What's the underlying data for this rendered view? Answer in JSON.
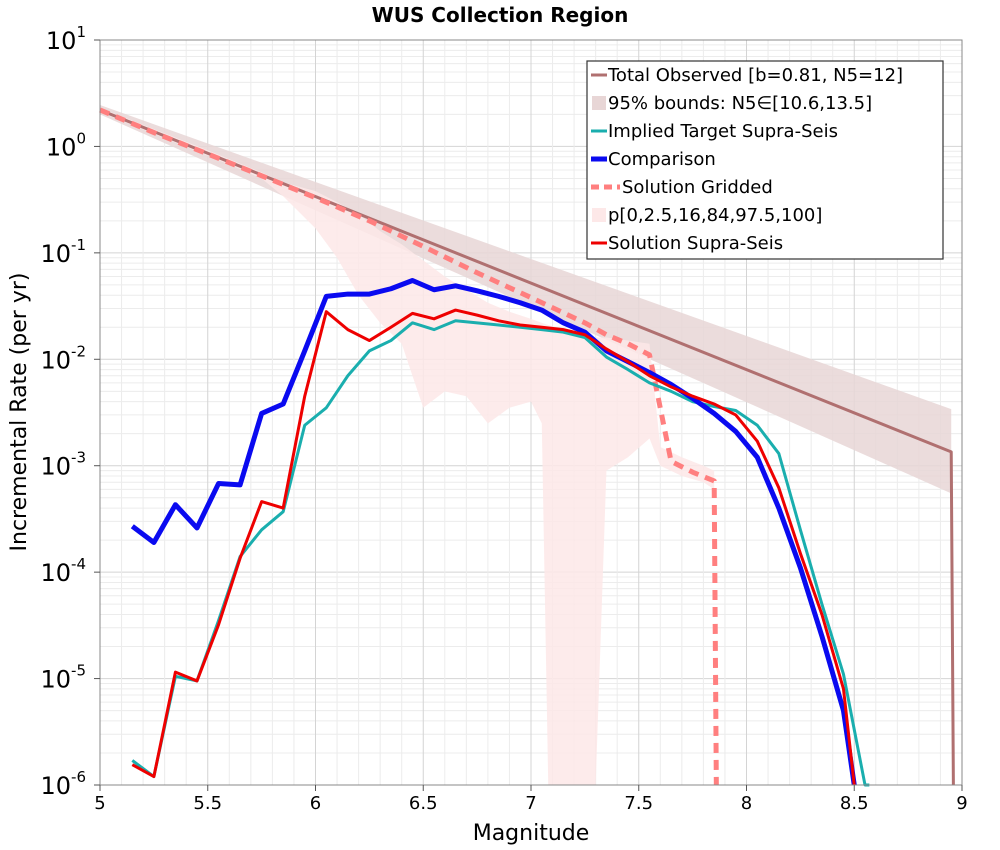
{
  "chart_data": {
    "type": "line",
    "title": "WUS Collection Region",
    "xlabel": "Magnitude",
    "ylabel": "Incremental Rate (per yr)",
    "xlim": [
      5,
      9
    ],
    "ylim": [
      1e-06,
      10
    ],
    "yscale": "log",
    "grid": true,
    "legend_position": "top-right",
    "x_ticks": [
      "5",
      "5.5",
      "6",
      "6.5",
      "7",
      "7.5",
      "8",
      "8.5",
      "9"
    ],
    "y_ticks": [
      {
        "base": "10",
        "exp": "-6"
      },
      {
        "base": "10",
        "exp": "-5"
      },
      {
        "base": "10",
        "exp": "-4"
      },
      {
        "base": "10",
        "exp": "-3"
      },
      {
        "base": "10",
        "exp": "-2"
      },
      {
        "base": "10",
        "exp": "-1"
      },
      {
        "base": "10",
        "exp": "0"
      },
      {
        "base": "10",
        "exp": "1"
      }
    ],
    "legend": [
      {
        "label": "Total Observed [b=0.81, N5=12]",
        "color": "#b07070",
        "style": "line"
      },
      {
        "label": "95% bounds: N5∈[10.6,13.5]",
        "color": "#e8d6d6",
        "style": "band"
      },
      {
        "label": "Implied Target Supra-Seis",
        "color": "#1aaeae",
        "style": "line"
      },
      {
        "label": "Comparison",
        "color": "#0a0af0",
        "style": "thick"
      },
      {
        "label": "Solution Gridded",
        "color": "#ff7f7f",
        "style": "dashed"
      },
      {
        "label": "p[0,2.5,16,84,97.5,100]",
        "color": "#fde8e8",
        "style": "band"
      },
      {
        "label": "Solution Supra-Seis",
        "color": "#ee0000",
        "style": "line"
      }
    ],
    "series": [
      {
        "name": "Total Observed [b=0.81, N5=12]",
        "color": "#b07070",
        "x": [
          5.0,
          8.95,
          8.96
        ],
        "y": [
          2.2,
          0.00135,
          1e-06
        ]
      },
      {
        "name": "Implied Target Supra-Seis",
        "color": "#1aaeae",
        "x": [
          5.15,
          5.25,
          5.35,
          5.45,
          5.55,
          5.65,
          5.75,
          5.85,
          5.95,
          6.05,
          6.15,
          6.25,
          6.35,
          6.45,
          6.55,
          6.65,
          6.75,
          6.85,
          6.95,
          7.05,
          7.15,
          7.25,
          7.35,
          7.45,
          7.55,
          7.65,
          7.75,
          7.85,
          7.95,
          8.05,
          8.15,
          8.25,
          8.35,
          8.45,
          8.55,
          8.57
        ],
        "y": [
          1.7e-06,
          1.2e-06,
          1.05e-05,
          9.5e-06,
          3.5e-05,
          0.00014,
          0.00025,
          0.00037,
          0.0024,
          0.0035,
          0.007,
          0.012,
          0.015,
          0.022,
          0.019,
          0.023,
          0.022,
          0.021,
          0.02,
          0.019,
          0.018,
          0.016,
          0.0105,
          0.008,
          0.006,
          0.005,
          0.004,
          0.0036,
          0.0033,
          0.0024,
          0.0013,
          0.00025,
          5e-05,
          1.1e-05,
          6.5e-07,
          1e-06
        ]
      },
      {
        "name": "Comparison",
        "color": "#0a0af0",
        "x": [
          5.15,
          5.25,
          5.35,
          5.45,
          5.55,
          5.65,
          5.75,
          5.85,
          5.95,
          6.05,
          6.15,
          6.25,
          6.35,
          6.45,
          6.55,
          6.65,
          6.75,
          6.85,
          6.95,
          7.05,
          7.15,
          7.25,
          7.35,
          7.45,
          7.55,
          7.65,
          7.75,
          7.85,
          7.95,
          8.05,
          8.15,
          8.25,
          8.35,
          8.45,
          8.5
        ],
        "y": [
          0.00027,
          0.00019,
          0.00043,
          0.00026,
          0.00068,
          0.00066,
          0.0031,
          0.0038,
          0.012,
          0.039,
          0.041,
          0.041,
          0.046,
          0.055,
          0.045,
          0.049,
          0.044,
          0.039,
          0.034,
          0.029,
          0.022,
          0.018,
          0.012,
          0.0095,
          0.0075,
          0.0058,
          0.0043,
          0.0031,
          0.0021,
          0.0012,
          0.0004,
          0.00011,
          2.5e-05,
          5e-06,
          1e-06
        ]
      },
      {
        "name": "Solution Gridded",
        "color": "#ff7f7f",
        "x": [
          5.0,
          5.25,
          5.5,
          5.75,
          6.0,
          6.25,
          6.5,
          6.75,
          7.0,
          7.25,
          7.35,
          7.45,
          7.55,
          7.65,
          7.75,
          7.85,
          7.86
        ],
        "y": [
          2.2,
          1.35,
          0.85,
          0.53,
          0.33,
          0.2,
          0.115,
          0.065,
          0.038,
          0.022,
          0.017,
          0.014,
          0.011,
          0.0011,
          0.00087,
          0.00072,
          1e-06
        ]
      },
      {
        "name": "Solution Supra-Seis",
        "color": "#ee0000",
        "x": [
          5.15,
          5.25,
          5.35,
          5.45,
          5.55,
          5.65,
          5.75,
          5.85,
          5.95,
          6.05,
          6.15,
          6.25,
          6.35,
          6.45,
          6.55,
          6.65,
          6.75,
          6.85,
          6.95,
          7.05,
          7.15,
          7.25,
          7.35,
          7.45,
          7.55,
          7.65,
          7.75,
          7.85,
          7.95,
          8.05,
          8.15,
          8.25,
          8.35,
          8.45,
          8.5
        ],
        "y": [
          1.55e-06,
          1.2e-06,
          1.15e-05,
          9.5e-06,
          3.2e-05,
          0.000135,
          0.00046,
          0.0004,
          0.0045,
          0.028,
          0.019,
          0.015,
          0.02,
          0.027,
          0.024,
          0.029,
          0.026,
          0.023,
          0.021,
          0.02,
          0.019,
          0.017,
          0.0125,
          0.0095,
          0.007,
          0.0055,
          0.0045,
          0.0038,
          0.003,
          0.0017,
          0.00062,
          0.00015,
          4e-05,
          8e-06,
          1e-06
        ]
      }
    ],
    "bands": [
      {
        "name": "95% bounds: N5∈[10.6,13.5]",
        "color": "#e8d6d6",
        "x": [
          5.0,
          8.95
        ],
        "lower": [
          2.0,
          0.00055
        ],
        "upper": [
          2.45,
          0.0034
        ]
      },
      {
        "name": "p[0,2.5,16,84,97.5,100]",
        "color": "#fde8e8",
        "x": [
          5.0,
          5.5,
          5.75,
          5.85,
          6.0,
          6.1,
          6.2,
          6.3,
          6.4,
          6.5,
          6.6,
          6.7,
          6.8,
          6.9,
          7.0,
          7.05,
          7.08,
          7.2,
          7.3,
          7.35,
          7.45,
          7.55,
          7.6,
          7.7,
          7.8,
          7.85
        ],
        "lower": [
          2.1,
          0.82,
          0.5,
          0.34,
          0.17,
          0.09,
          0.04,
          0.022,
          0.014,
          0.0035,
          0.005,
          0.0045,
          0.0025,
          0.0035,
          0.004,
          0.0025,
          1e-06,
          1e-06,
          1e-06,
          0.0009,
          0.0012,
          0.0018,
          0.001,
          0.0008,
          0.0007,
          0.0006
        ],
        "upper": [
          2.3,
          0.92,
          0.57,
          0.46,
          0.38,
          0.3,
          0.23,
          0.16,
          0.12,
          0.085,
          0.06,
          0.045,
          0.034,
          0.028,
          0.024,
          0.022,
          0.021,
          0.018,
          0.016,
          0.016,
          0.015,
          0.014,
          0.0015,
          0.0012,
          0.001,
          0.0009
        ]
      }
    ]
  }
}
